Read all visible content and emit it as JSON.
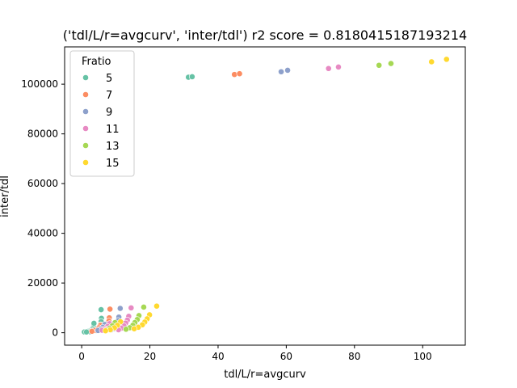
{
  "chart_data": {
    "type": "scatter",
    "title": "('tdl/L/r=avgcurv', 'inter/tdl') r2 score = 0.8180415187193214",
    "xlabel": "tdl/L/r=avgcurv",
    "ylabel": "inter/tdl",
    "xlim": [
      -5,
      112.5
    ],
    "ylim": [
      -5000,
      115000
    ],
    "x_ticks": [
      0,
      20,
      40,
      60,
      80,
      100
    ],
    "y_ticks": [
      0,
      20000,
      40000,
      60000,
      80000,
      100000
    ],
    "legend": {
      "title": "Fratio",
      "placement": "top-left"
    },
    "series": [
      {
        "name": "5",
        "color": "#66c2a5",
        "points": [
          [
            31.3,
            102800
          ],
          [
            32.4,
            103000
          ],
          [
            5.7,
            9300
          ],
          [
            5.8,
            5800
          ],
          [
            5.7,
            4500
          ],
          [
            5.6,
            3200
          ],
          [
            5.4,
            2100
          ],
          [
            4.8,
            1200
          ],
          [
            4.0,
            800
          ],
          [
            3.5,
            2500
          ],
          [
            3.2,
            1600
          ],
          [
            2.8,
            1000
          ],
          [
            2.2,
            700
          ],
          [
            1.8,
            500
          ],
          [
            3.6,
            3800
          ],
          [
            0.8,
            300
          ],
          [
            2.5,
            400
          ],
          [
            1.4,
            300
          ]
        ]
      },
      {
        "name": "7",
        "color": "#fc8d62",
        "points": [
          [
            44.8,
            103900
          ],
          [
            46.3,
            104200
          ],
          [
            8.3,
            9500
          ],
          [
            8.1,
            6000
          ],
          [
            8.0,
            4700
          ],
          [
            7.8,
            3400
          ],
          [
            7.6,
            2300
          ],
          [
            7.0,
            1400
          ],
          [
            6.4,
            1000
          ],
          [
            5.5,
            3000
          ],
          [
            5.0,
            2000
          ],
          [
            4.6,
            1300
          ],
          [
            3.8,
            900
          ],
          [
            3.0,
            600
          ]
        ]
      },
      {
        "name": "9",
        "color": "#8da0cb",
        "points": [
          [
            58.5,
            105000
          ],
          [
            60.4,
            105600
          ],
          [
            11.3,
            9800
          ],
          [
            10.9,
            6300
          ],
          [
            10.7,
            4900
          ],
          [
            10.3,
            3600
          ],
          [
            10.0,
            2600
          ],
          [
            9.4,
            1600
          ],
          [
            8.6,
            1100
          ],
          [
            6.8,
            3300
          ],
          [
            6.2,
            2200
          ],
          [
            5.6,
            1400
          ],
          [
            4.8,
            900
          ]
        ]
      },
      {
        "name": "11",
        "color": "#e78ac3",
        "points": [
          [
            72.4,
            106300
          ],
          [
            75.3,
            106900
          ],
          [
            14.5,
            10000
          ],
          [
            13.8,
            6600
          ],
          [
            13.4,
            5100
          ],
          [
            12.9,
            3900
          ],
          [
            12.4,
            2800
          ],
          [
            11.6,
            1800
          ],
          [
            10.8,
            1200
          ],
          [
            8.2,
            3700
          ],
          [
            7.6,
            2500
          ],
          [
            6.9,
            1600
          ],
          [
            6.0,
            1000
          ]
        ]
      },
      {
        "name": "13",
        "color": "#a6d854",
        "points": [
          [
            87.2,
            107600
          ],
          [
            90.7,
            108300
          ],
          [
            18.2,
            10300
          ],
          [
            16.8,
            6900
          ],
          [
            16.3,
            5300
          ],
          [
            15.6,
            4100
          ],
          [
            15.0,
            3000
          ],
          [
            14.1,
            2000
          ],
          [
            13.0,
            1400
          ],
          [
            9.8,
            4100
          ],
          [
            9.0,
            2800
          ],
          [
            8.2,
            1800
          ],
          [
            7.2,
            1100
          ]
        ]
      },
      {
        "name": "15",
        "color": "#ffd92f",
        "points": [
          [
            102.6,
            109000
          ],
          [
            107.0,
            110000
          ],
          [
            22.0,
            10700
          ],
          [
            19.9,
            7200
          ],
          [
            19.2,
            5600
          ],
          [
            18.5,
            4300
          ],
          [
            17.8,
            3200
          ],
          [
            16.6,
            2200
          ],
          [
            15.4,
            1600
          ],
          [
            11.4,
            4400
          ],
          [
            10.5,
            3000
          ],
          [
            9.6,
            2000
          ],
          [
            8.4,
            1200
          ],
          [
            7.0,
            800
          ]
        ]
      }
    ]
  }
}
